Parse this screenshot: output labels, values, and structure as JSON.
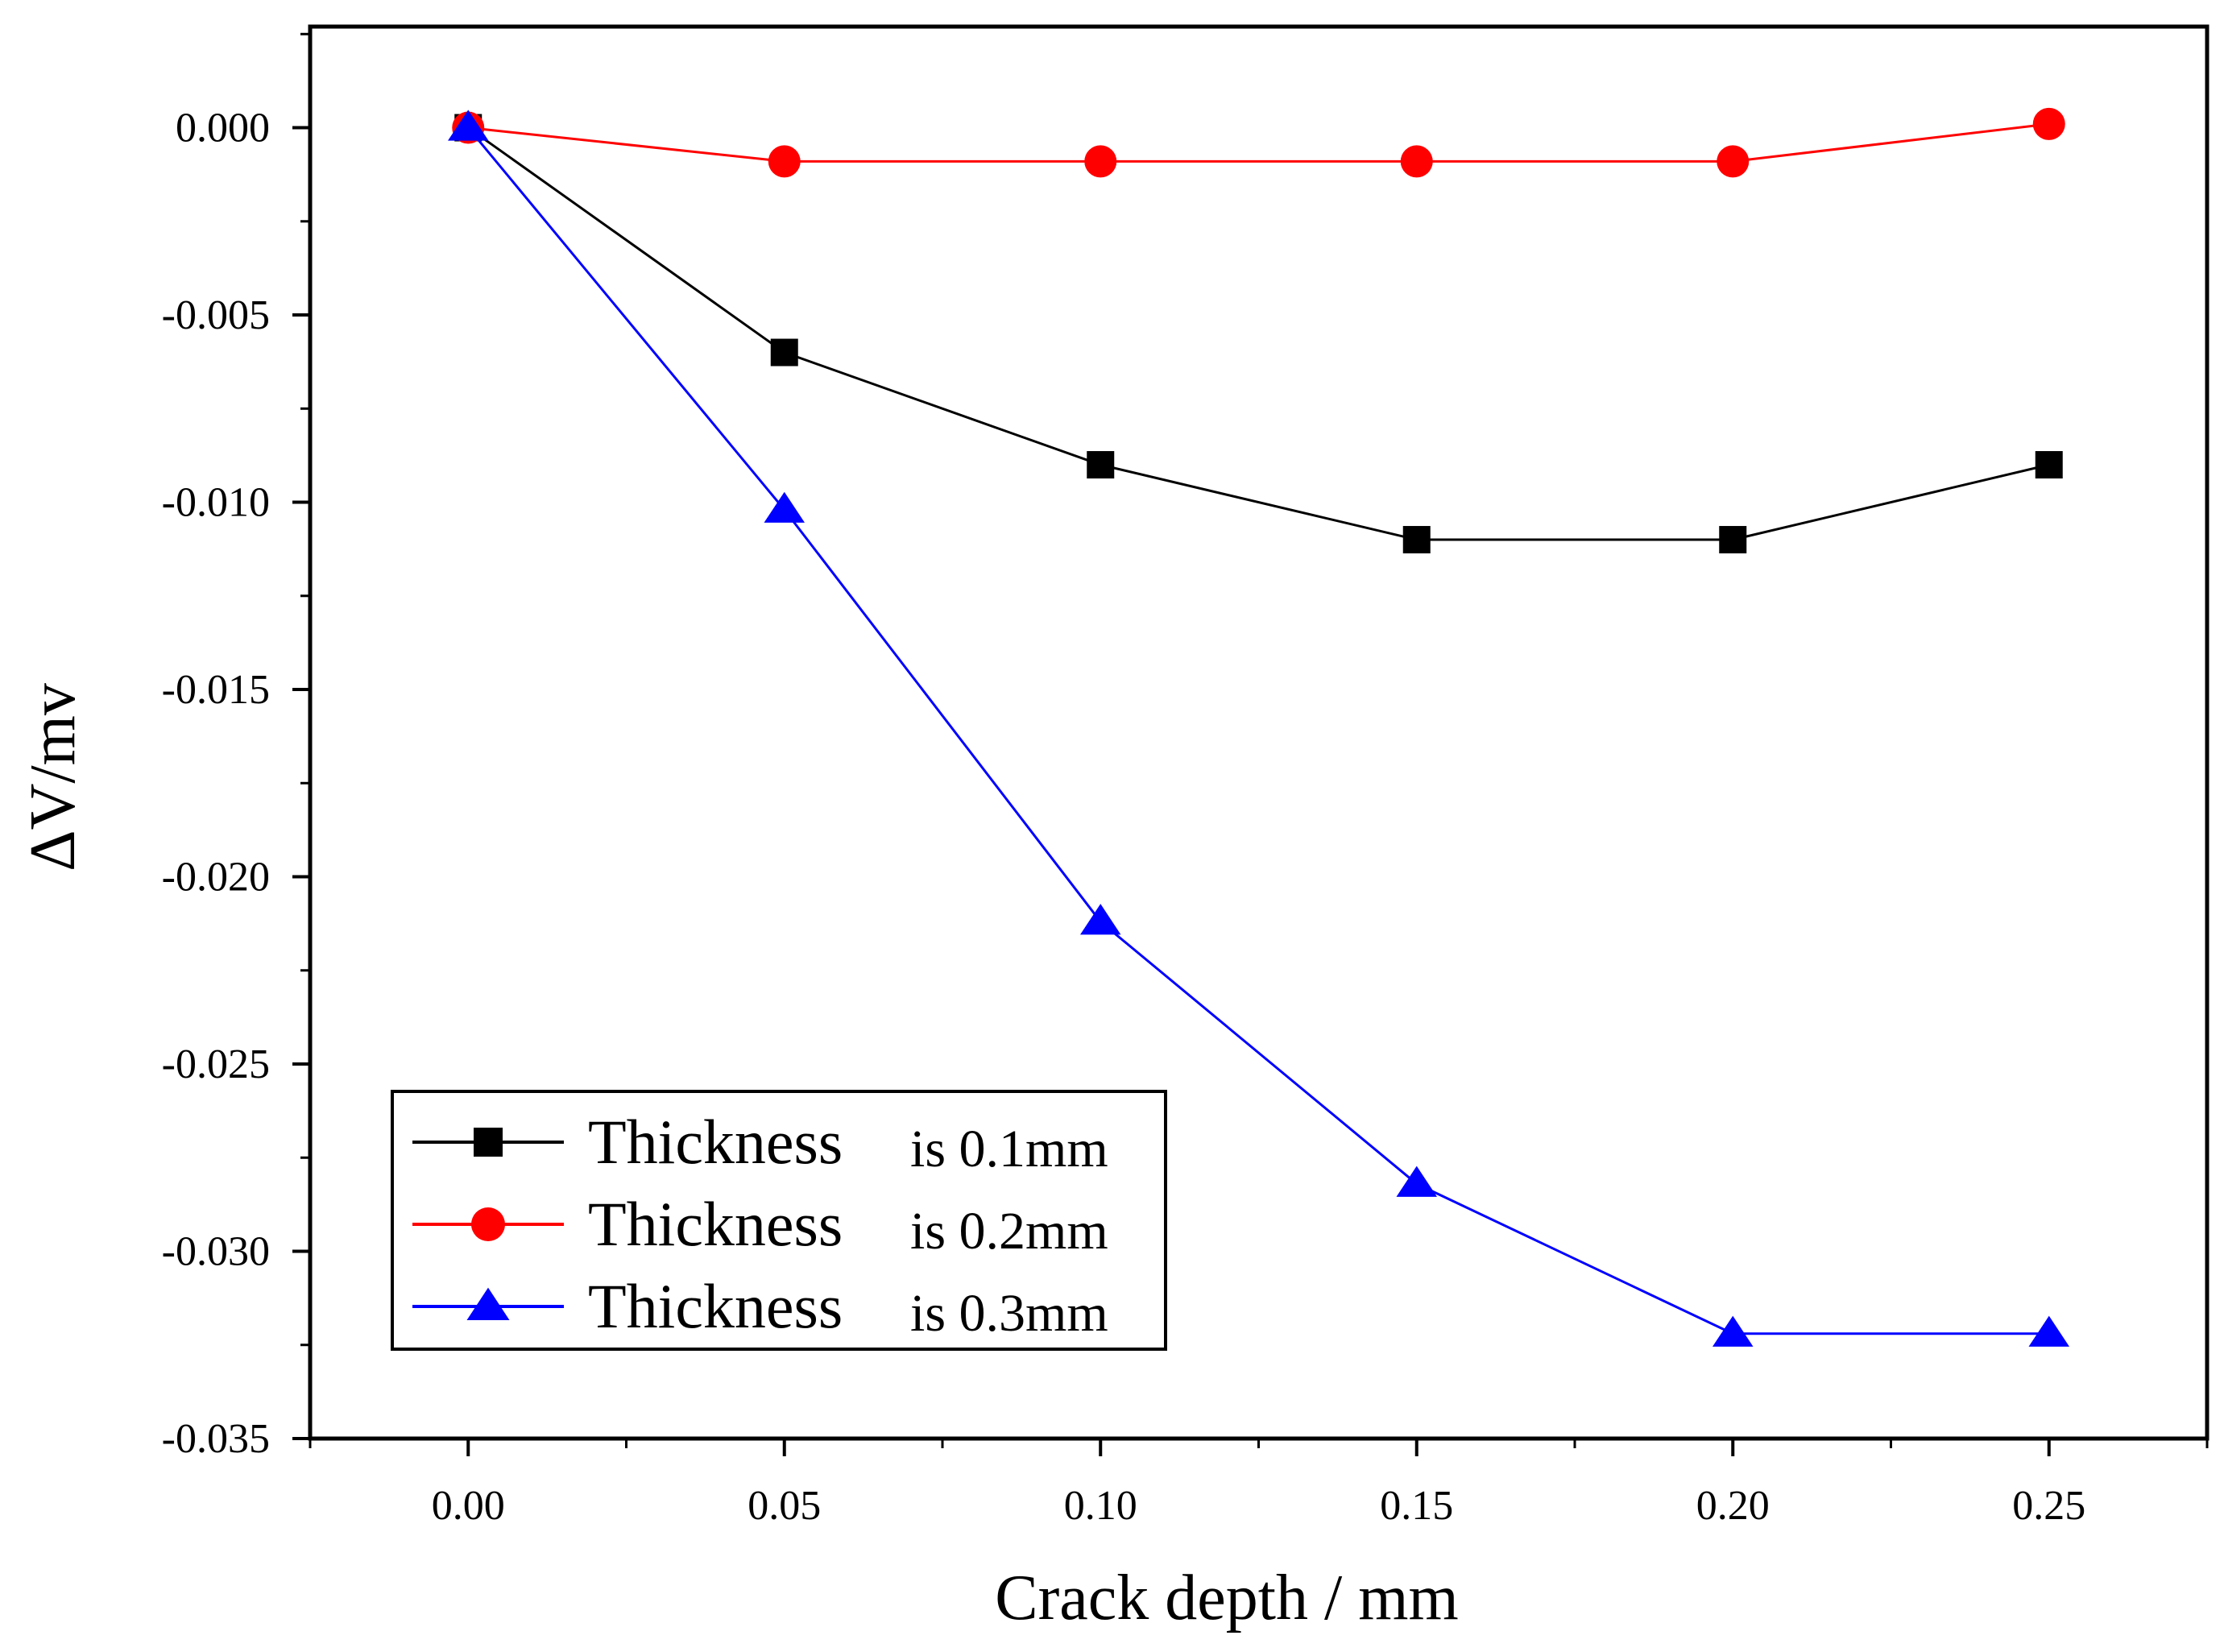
{
  "chart_data": {
    "type": "line",
    "title": "",
    "xlabel": "Crack depth / mm",
    "ylabel": "ΔV/mv",
    "xlim": [
      -0.025,
      0.275
    ],
    "ylim": [
      -0.035,
      0.0027
    ],
    "x": [
      0.0,
      0.05,
      0.1,
      0.15,
      0.2,
      0.25
    ],
    "x_ticks": [
      "0.00",
      "0.05",
      "0.10",
      "0.15",
      "0.20",
      "0.25"
    ],
    "y_ticks": [
      "0.000",
      "-0.005",
      "-0.010",
      "-0.015",
      "-0.020",
      "-0.025",
      "-0.030",
      "-0.035"
    ],
    "grid": false,
    "legend_position": "bottom-left",
    "series": [
      {
        "name": "Thickness is 0.1mm",
        "legend_word": "Thickness",
        "legend_suffix": "is 0.1mm",
        "color": "#000000",
        "marker": "square",
        "values": [
          0.0,
          -0.006,
          -0.009,
          -0.011,
          -0.011,
          -0.009
        ]
      },
      {
        "name": "Thickness is 0.2mm",
        "legend_word": "Thickness",
        "legend_suffix": "is 0.2mm",
        "color": "#ff0000",
        "marker": "circle",
        "values": [
          0.0,
          -0.0009,
          -0.0009,
          -0.0009,
          -0.0009,
          0.0001
        ]
      },
      {
        "name": "Thickness is 0.3mm",
        "legend_word": "Thickness",
        "legend_suffix": "is 0.3mm",
        "color": "#0000ff",
        "marker": "triangle",
        "values": [
          0.0,
          -0.0102,
          -0.0212,
          -0.0282,
          -0.0322,
          -0.0322
        ]
      }
    ]
  }
}
